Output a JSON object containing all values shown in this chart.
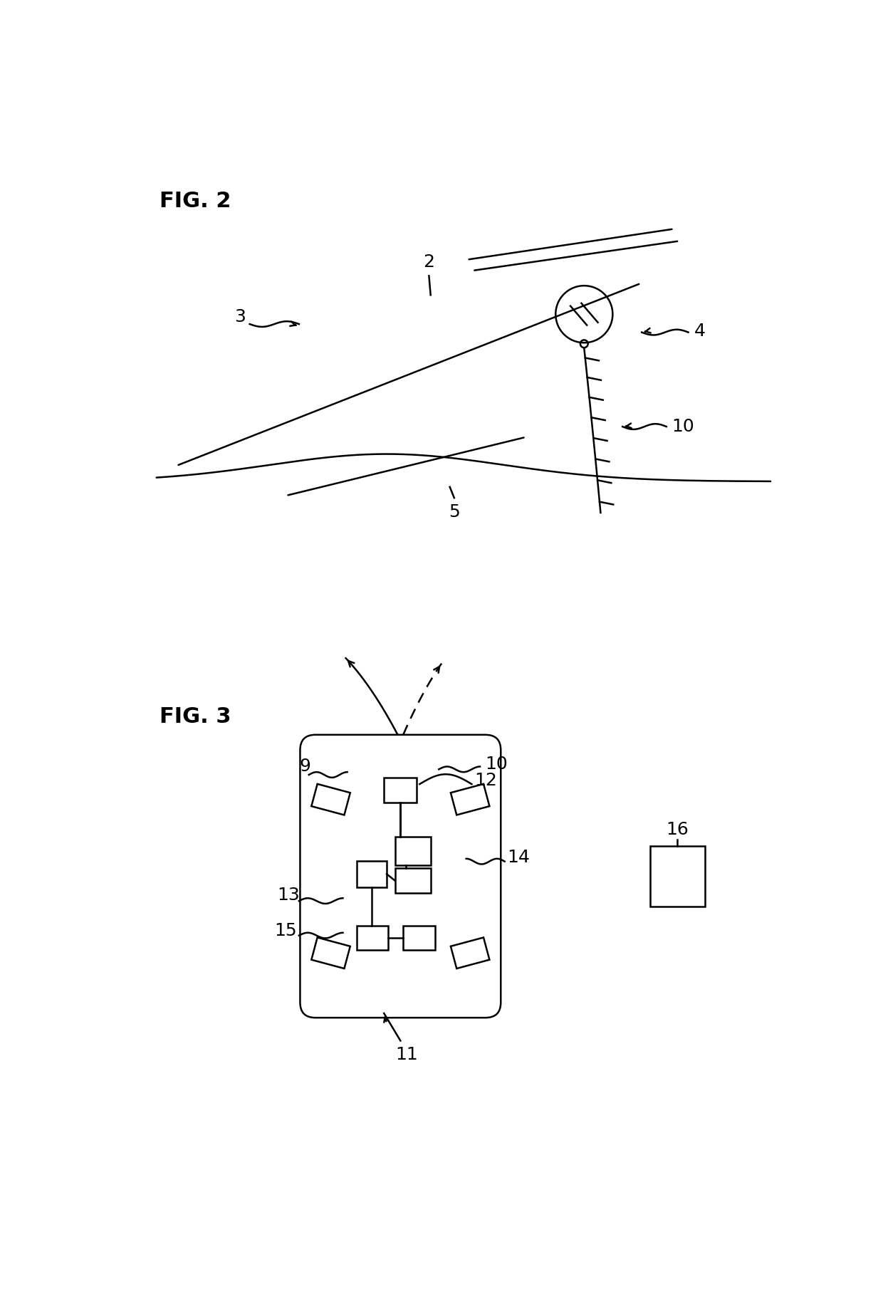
{
  "bg_color": "#ffffff",
  "fig_width": 12.4,
  "fig_height": 18.48,
  "fig2_label": "FIG. 2",
  "fig3_label": "FIG. 3",
  "label_3": "3",
  "label_2": "2",
  "label_4": "4",
  "label_5": "5",
  "label_10_fig2": "10",
  "label_9": "9",
  "label_10_fig3": "10",
  "label_12": "12",
  "label_13": "13",
  "label_14": "14",
  "label_15": "15",
  "label_11": "11",
  "label_16": "16"
}
